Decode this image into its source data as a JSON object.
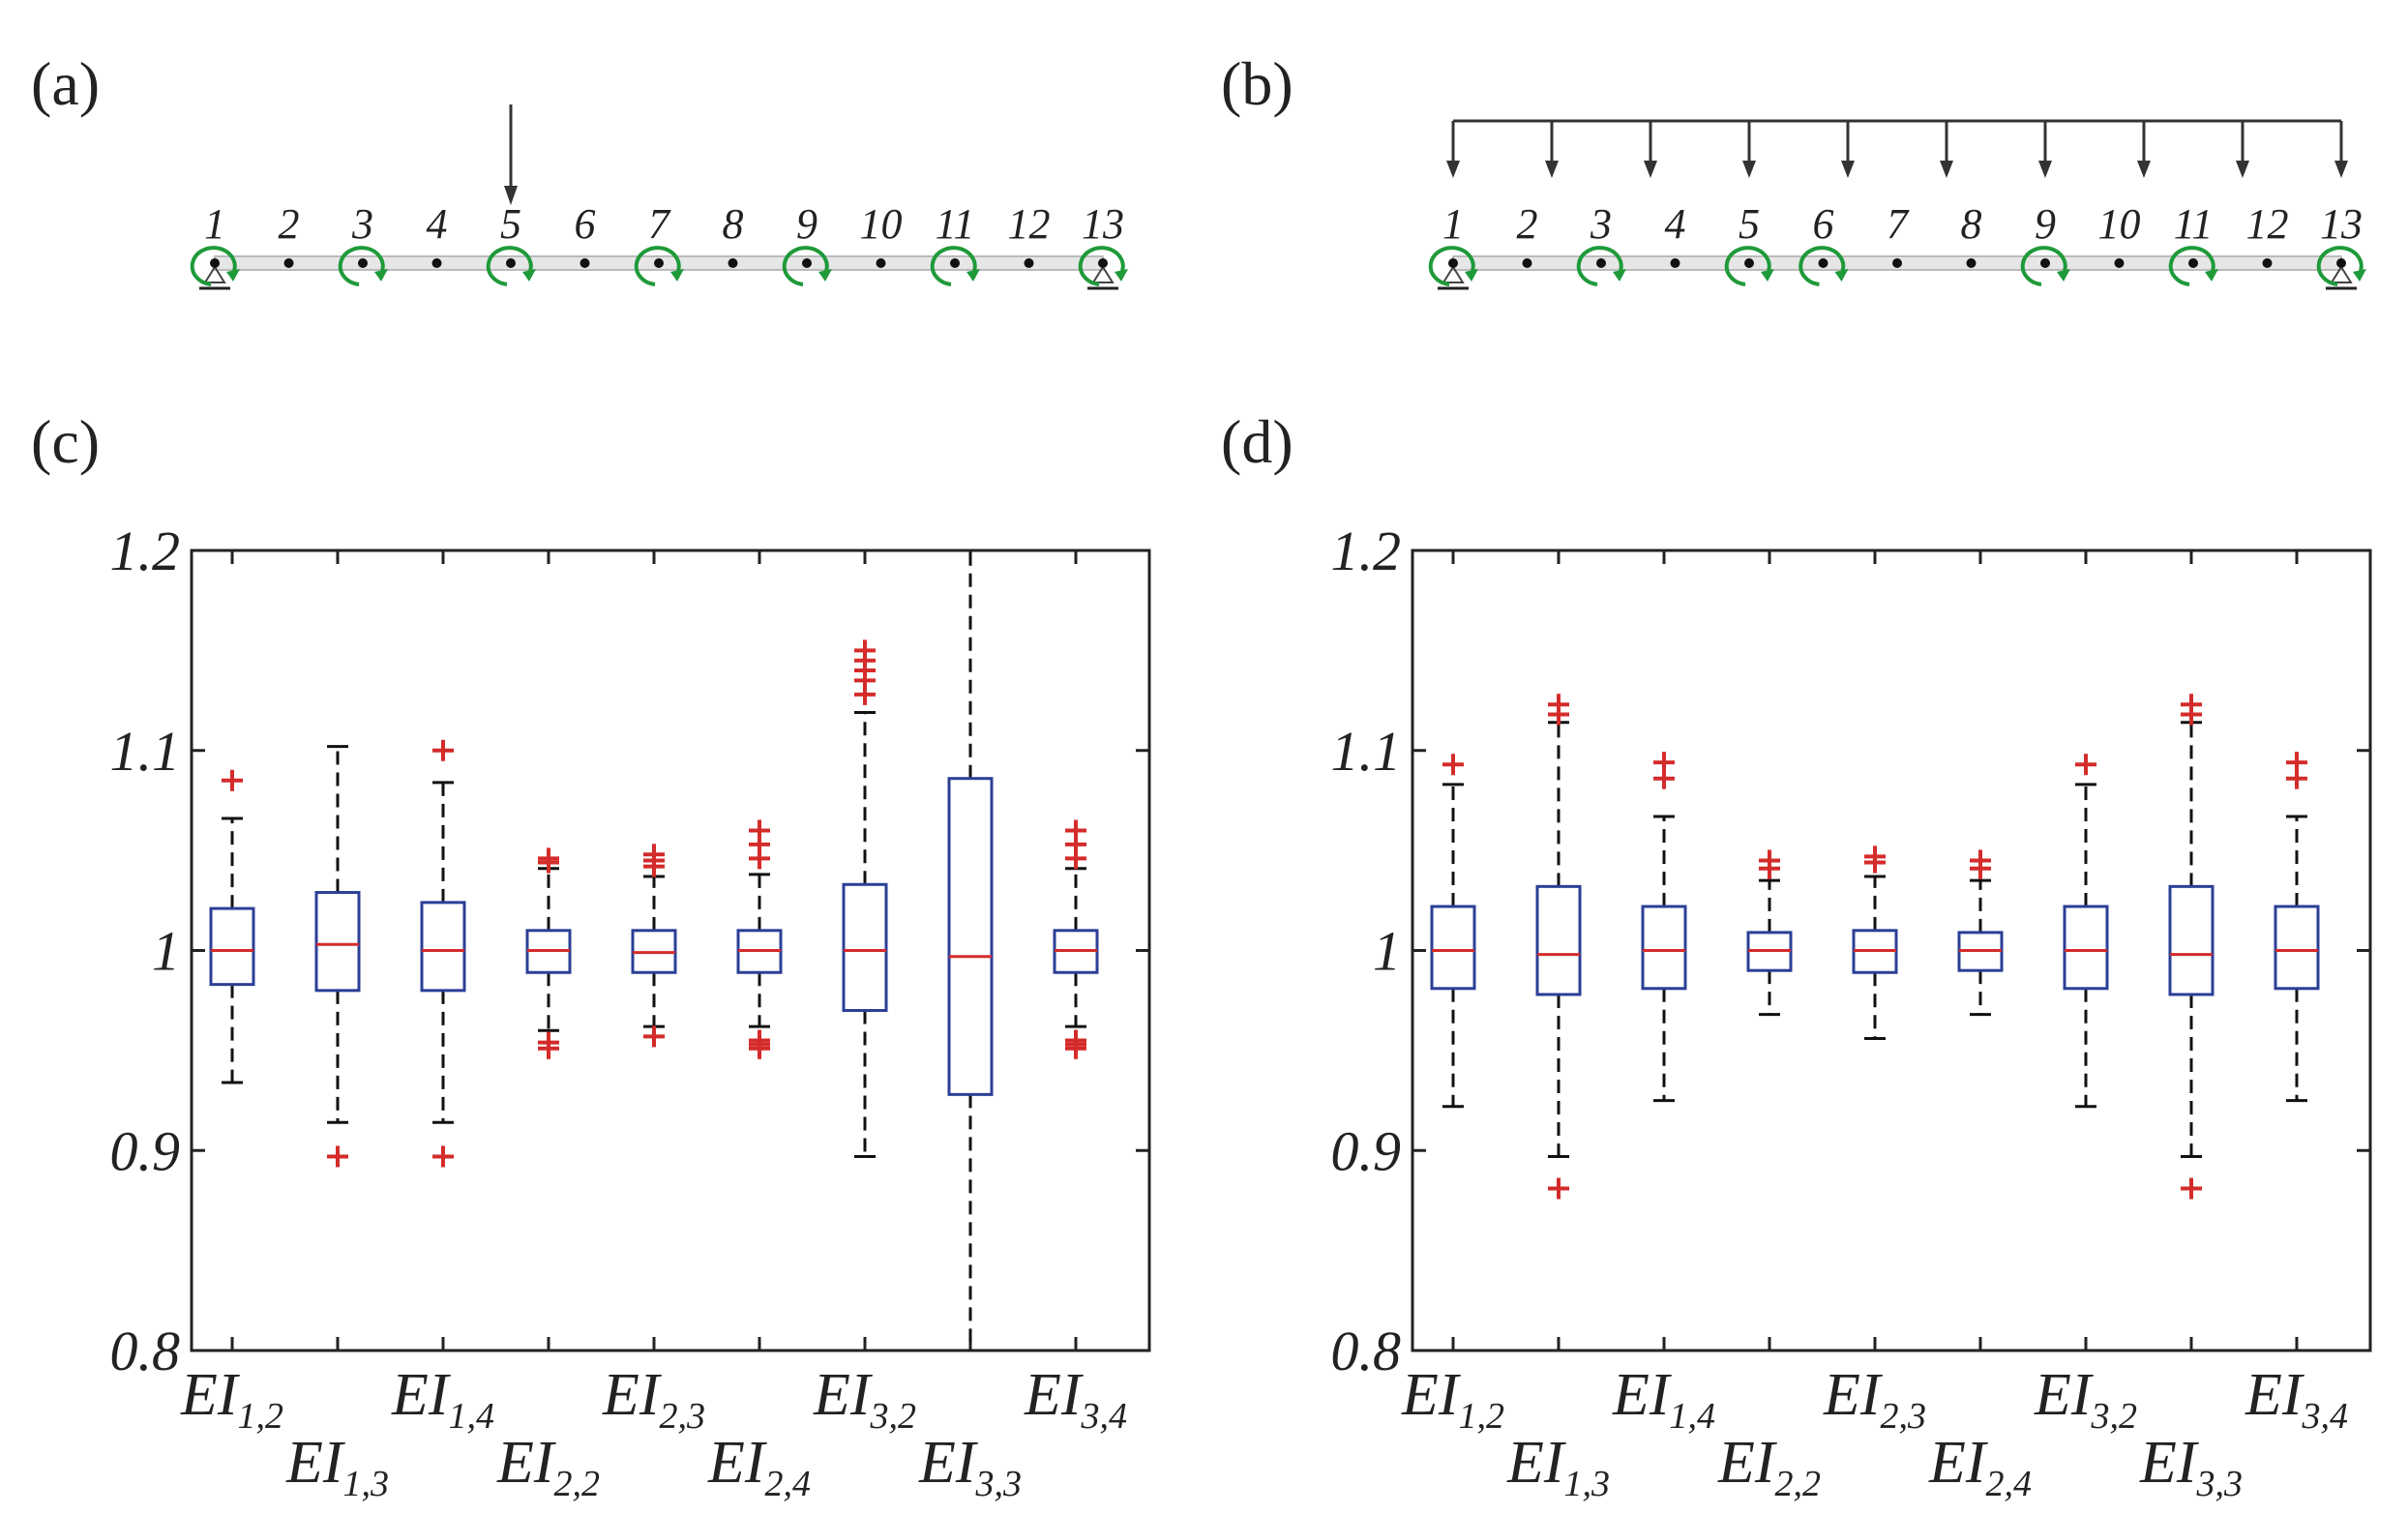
{
  "panels": {
    "a": {
      "label": "(a)",
      "node_labels": [
        "1",
        "2",
        "3",
        "4",
        "5",
        "6",
        "7",
        "8",
        "9",
        "10",
        "11",
        "12",
        "13"
      ],
      "rotation_markers_at": [
        1,
        3,
        5,
        7,
        9,
        11,
        13
      ],
      "supports_at": [
        1,
        13
      ],
      "load": {
        "type": "point",
        "at_node": 5
      }
    },
    "b": {
      "label": "(b)",
      "node_labels": [
        "1",
        "2",
        "3",
        "4",
        "5",
        "6",
        "7",
        "8",
        "9",
        "10",
        "11",
        "12",
        "13"
      ],
      "rotation_markers_at": [
        1,
        3,
        5,
        6,
        9,
        11,
        13
      ],
      "supports_at": [
        1,
        13
      ],
      "load": {
        "type": "distributed",
        "arrow_count": 10
      }
    },
    "c": {
      "label": "(c)"
    },
    "d": {
      "label": "(d)"
    }
  },
  "colors": {
    "axes": "#222222",
    "box": "#2b3f96",
    "median": "#d42b2b",
    "outlier": "#d42b2b",
    "whisker": "#111111",
    "rotation_marker": "#1f9a3a",
    "beam": "#bbbbbb"
  },
  "chart_data": [
    {
      "panel": "c",
      "type": "box",
      "ylim": [
        0.8,
        1.2
      ],
      "yticks": [
        0.8,
        0.9,
        1.0,
        1.1,
        1.2
      ],
      "yticklabels": [
        "0.8",
        "0.9",
        "1",
        "1.1",
        "1.2"
      ],
      "grid": false,
      "categories": [
        "EI_{1,2}",
        "EI_{1,3}",
        "EI_{1,4}",
        "EI_{2,2}",
        "EI_{2,3}",
        "EI_{2,4}",
        "EI_{3,2}",
        "EI_{3,3}",
        "EI_{3,4}"
      ],
      "boxes": [
        {
          "name": "EI",
          "sub": "1,2",
          "whisker_low": 0.934,
          "q1": 0.983,
          "median": 1.0,
          "q3": 1.021,
          "whisker_high": 1.066,
          "outliers": [
            1.085
          ]
        },
        {
          "name": "EI",
          "sub": "1,3",
          "whisker_low": 0.914,
          "q1": 0.98,
          "median": 1.003,
          "q3": 1.029,
          "whisker_high": 1.102,
          "outliers": [
            0.897
          ]
        },
        {
          "name": "EI",
          "sub": "1,4",
          "whisker_low": 0.914,
          "q1": 0.98,
          "median": 1.0,
          "q3": 1.024,
          "whisker_high": 1.084,
          "outliers": [
            1.1,
            0.897
          ]
        },
        {
          "name": "EI",
          "sub": "2,2",
          "whisker_low": 0.96,
          "q1": 0.989,
          "median": 1.0,
          "q3": 1.01,
          "whisker_high": 1.041,
          "outliers": [
            1.046,
            1.044,
            0.954,
            0.951
          ]
        },
        {
          "name": "EI",
          "sub": "2,3",
          "whisker_low": 0.962,
          "q1": 0.989,
          "median": 0.999,
          "q3": 1.01,
          "whisker_high": 1.037,
          "outliers": [
            1.048,
            1.045,
            1.042,
            0.957
          ]
        },
        {
          "name": "EI",
          "sub": "2,4",
          "whisker_low": 0.962,
          "q1": 0.989,
          "median": 1.0,
          "q3": 1.01,
          "whisker_high": 1.038,
          "outliers": [
            1.06,
            1.053,
            1.046,
            0.955,
            0.953,
            0.951
          ]
        },
        {
          "name": "EI",
          "sub": "3,2",
          "whisker_low": 0.897,
          "q1": 0.97,
          "median": 1.0,
          "q3": 1.033,
          "whisker_high": 1.119,
          "outliers": [
            1.15,
            1.145,
            1.14,
            1.135,
            1.128
          ]
        },
        {
          "name": "EI",
          "sub": "3,3",
          "whisker_low": 0.8,
          "q1": 0.928,
          "median": 0.997,
          "q3": 1.086,
          "whisker_high": 1.2,
          "outliers": []
        },
        {
          "name": "EI",
          "sub": "3,4",
          "whisker_low": 0.962,
          "q1": 0.989,
          "median": 1.0,
          "q3": 1.01,
          "whisker_high": 1.041,
          "outliers": [
            1.06,
            1.053,
            1.046,
            0.955,
            0.953,
            0.951
          ]
        }
      ]
    },
    {
      "panel": "d",
      "type": "box",
      "ylim": [
        0.8,
        1.2
      ],
      "yticks": [
        0.8,
        0.9,
        1.0,
        1.1,
        1.2
      ],
      "yticklabels": [
        "0.8",
        "0.9",
        "1",
        "1.1",
        "1.2"
      ],
      "grid": false,
      "categories": [
        "EI_{1,2}",
        "EI_{1,3}",
        "EI_{1,4}",
        "EI_{2,2}",
        "EI_{2,3}",
        "EI_{2,4}",
        "EI_{3,2}",
        "EI_{3,3}",
        "EI_{3,4}"
      ],
      "boxes": [
        {
          "name": "EI",
          "sub": "1,2",
          "whisker_low": 0.922,
          "q1": 0.981,
          "median": 1.0,
          "q3": 1.022,
          "whisker_high": 1.083,
          "outliers": [
            1.093
          ]
        },
        {
          "name": "EI",
          "sub": "1,3",
          "whisker_low": 0.897,
          "q1": 0.978,
          "median": 0.998,
          "q3": 1.032,
          "whisker_high": 1.114,
          "outliers": [
            1.123,
            1.118,
            0.881
          ]
        },
        {
          "name": "EI",
          "sub": "1,4",
          "whisker_low": 0.925,
          "q1": 0.981,
          "median": 1.0,
          "q3": 1.022,
          "whisker_high": 1.067,
          "outliers": [
            1.094,
            1.086
          ]
        },
        {
          "name": "EI",
          "sub": "2,2",
          "whisker_low": 0.968,
          "q1": 0.99,
          "median": 1.0,
          "q3": 1.009,
          "whisker_high": 1.035,
          "outliers": [
            1.045,
            1.041
          ]
        },
        {
          "name": "EI",
          "sub": "2,3",
          "whisker_low": 0.956,
          "q1": 0.989,
          "median": 1.0,
          "q3": 1.01,
          "whisker_high": 1.037,
          "outliers": [
            1.047,
            1.044
          ]
        },
        {
          "name": "EI",
          "sub": "2,4",
          "whisker_low": 0.968,
          "q1": 0.99,
          "median": 1.0,
          "q3": 1.009,
          "whisker_high": 1.035,
          "outliers": [
            1.045,
            1.041
          ]
        },
        {
          "name": "EI",
          "sub": "3,2",
          "whisker_low": 0.922,
          "q1": 0.981,
          "median": 1.0,
          "q3": 1.022,
          "whisker_high": 1.083,
          "outliers": [
            1.093
          ]
        },
        {
          "name": "EI",
          "sub": "3,3",
          "whisker_low": 0.897,
          "q1": 0.978,
          "median": 0.998,
          "q3": 1.032,
          "whisker_high": 1.114,
          "outliers": [
            1.123,
            1.118,
            0.881
          ]
        },
        {
          "name": "EI",
          "sub": "3,4",
          "whisker_low": 0.925,
          "q1": 0.981,
          "median": 1.0,
          "q3": 1.022,
          "whisker_high": 1.067,
          "outliers": [
            1.094,
            1.086
          ]
        }
      ]
    }
  ]
}
